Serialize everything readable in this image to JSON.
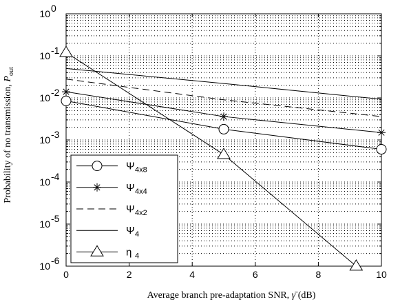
{
  "chart_data": {
    "type": "line",
    "xlabel_main": "Average branch pre-adaptation SNR, ",
    "xlabel_sym": "γ̄",
    "xlabel_unit": " (dB)",
    "ylabel_main": "Probability of no transmission, ",
    "ylabel_sym": "P",
    "ylabel_sub": "out",
    "xlim": [
      0,
      10
    ],
    "ylim_exp": [
      -6,
      0
    ],
    "y_scale": "log",
    "x_ticks": [
      "0",
      "2",
      "4",
      "6",
      "8",
      "10"
    ],
    "y_ticks": [
      {
        "base": "10",
        "exp": "-6"
      },
      {
        "base": "10",
        "exp": "-5"
      },
      {
        "base": "10",
        "exp": "-4"
      },
      {
        "base": "10",
        "exp": "-3"
      },
      {
        "base": "10",
        "exp": "-2"
      },
      {
        "base": "10",
        "exp": "-1"
      },
      {
        "base": "10",
        "exp": "0"
      }
    ],
    "grid": "dotted",
    "legend_position": "bottom-left",
    "series": [
      {
        "name": "Ψ",
        "sub": "4x8",
        "marker": "circle",
        "dash": "solid",
        "x": [
          0,
          5,
          10
        ],
        "y": [
          0.0085,
          0.0018,
          0.0006
        ]
      },
      {
        "name": "Ψ",
        "sub": "4x4",
        "marker": "star",
        "dash": "solid",
        "x": [
          0,
          5,
          10
        ],
        "y": [
          0.014,
          0.0036,
          0.0015
        ]
      },
      {
        "name": "Ψ",
        "sub": "4x2",
        "marker": "none",
        "dash": "dashed",
        "x": [
          0,
          5,
          10
        ],
        "y": [
          0.028,
          0.009,
          0.0036
        ]
      },
      {
        "name": "Ψ",
        "sub": "4",
        "marker": "none",
        "dash": "solid",
        "x": [
          0,
          5,
          10
        ],
        "y": [
          0.05,
          0.022,
          0.0093
        ]
      },
      {
        "name": "η",
        "sub": "4",
        "marker": "triangle",
        "dash": "solid",
        "x": [
          0,
          5,
          9.2
        ],
        "y": [
          0.12,
          0.00045,
          1e-06
        ]
      }
    ]
  }
}
